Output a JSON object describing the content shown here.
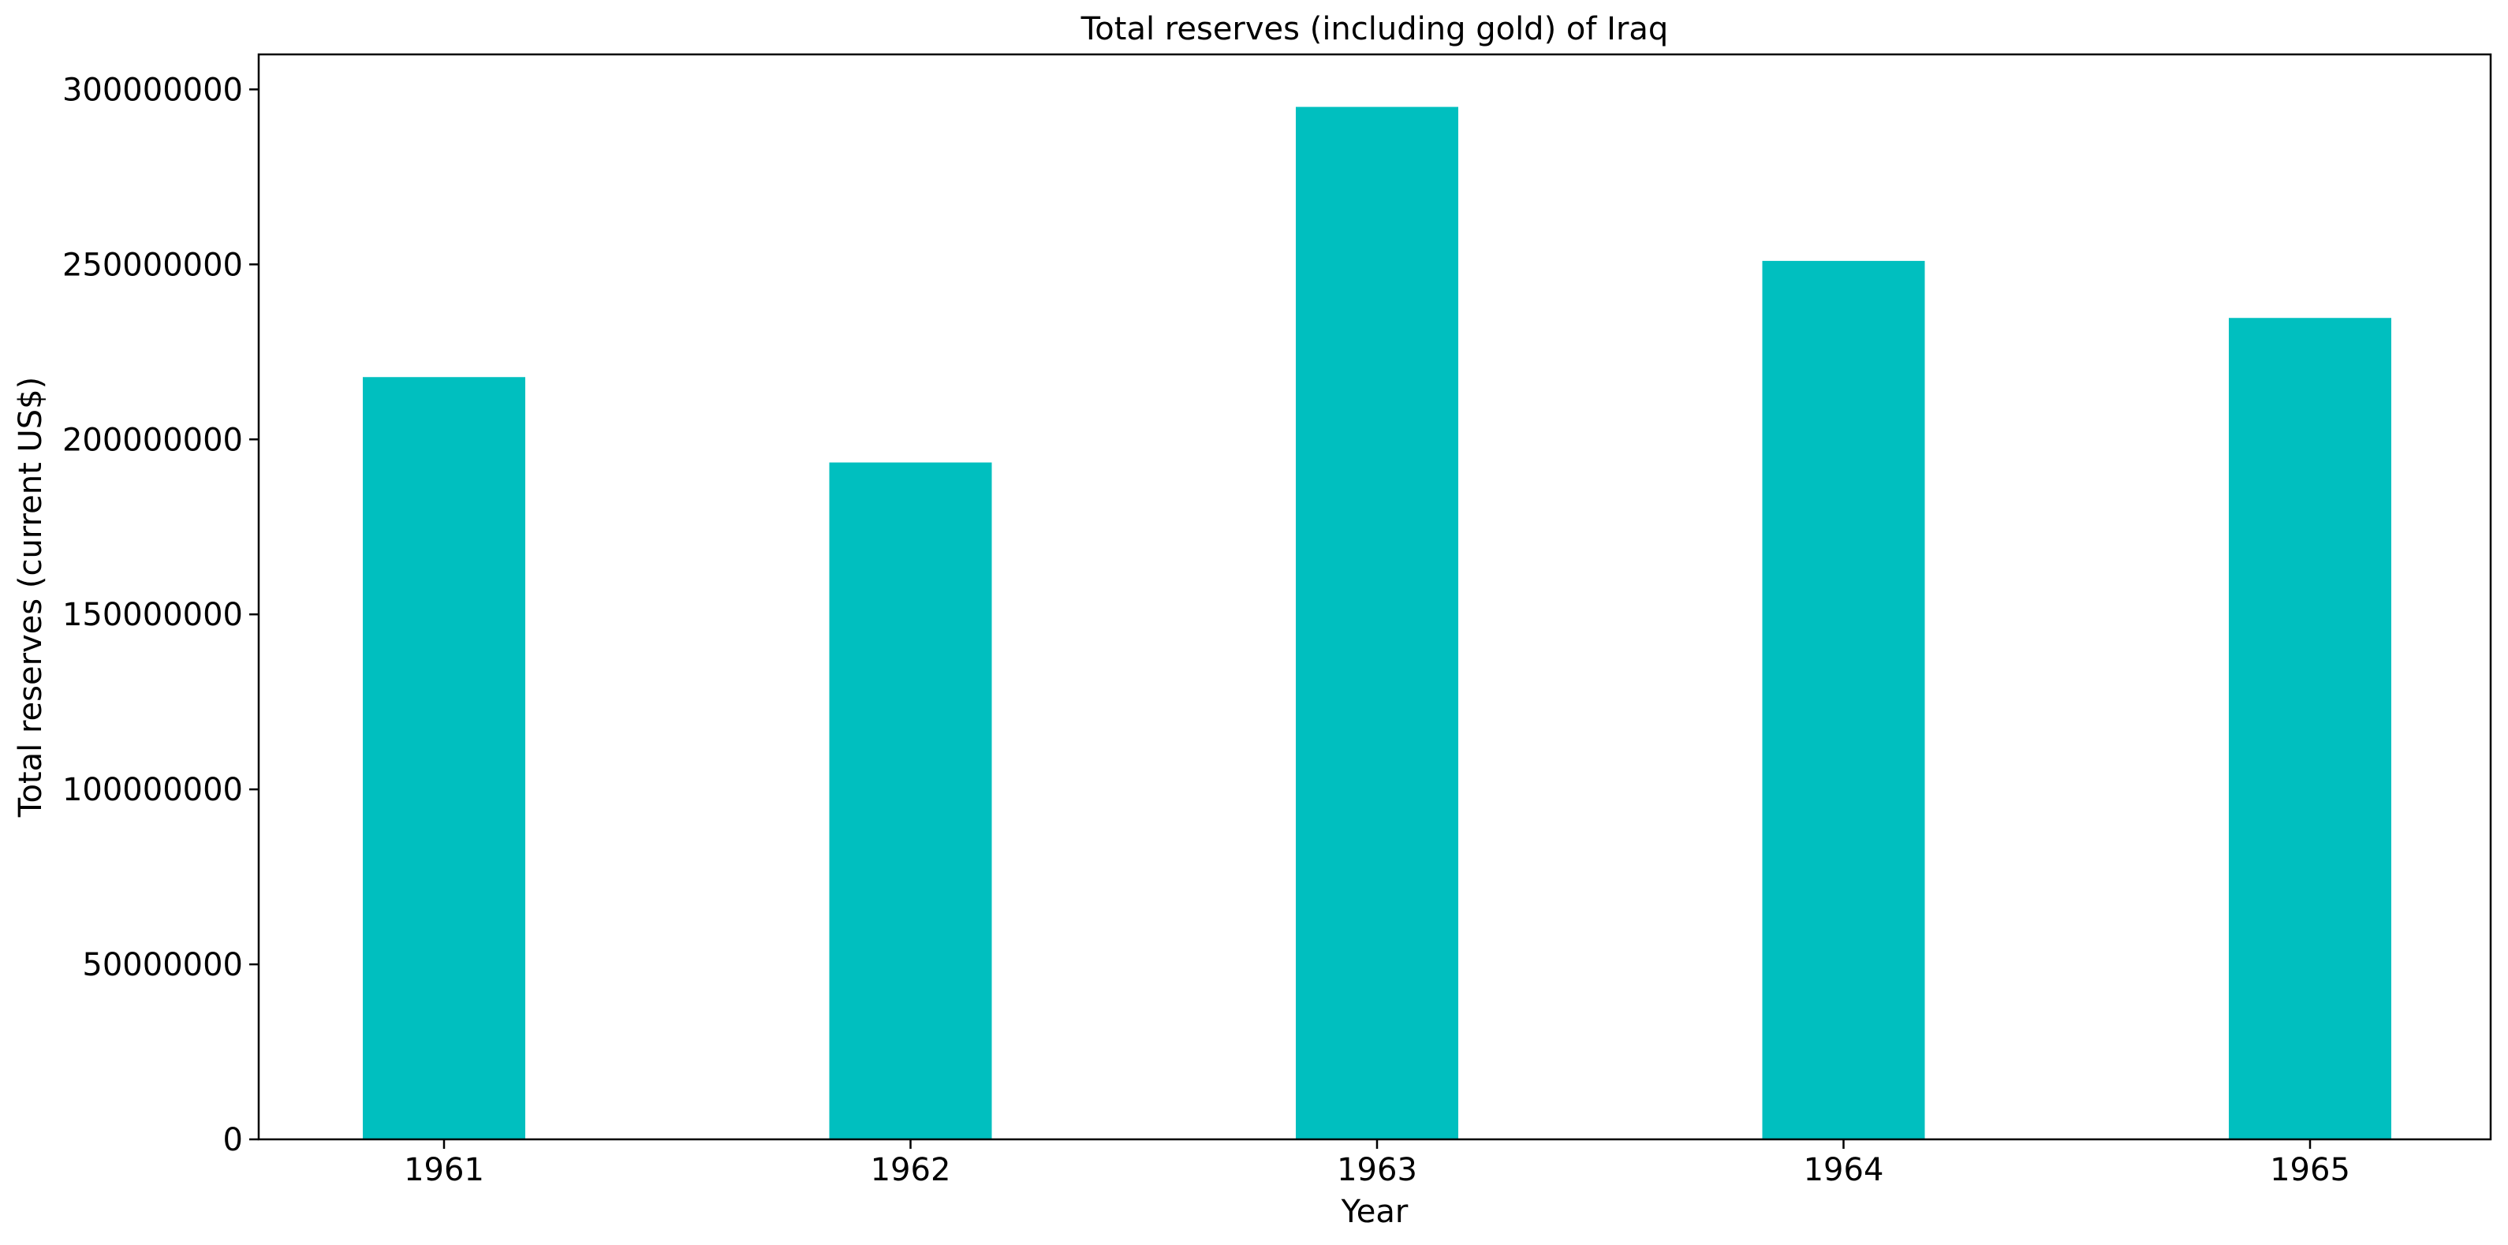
{
  "chart_data": {
    "type": "bar",
    "title": "Total reserves (including gold) of Iraq",
    "xlabel": "Year",
    "ylabel": "Total reserves (current US$)",
    "categories": [
      "1961",
      "1962",
      "1963",
      "1964",
      "1965"
    ],
    "values": [
      217800000,
      193400000,
      295000000,
      251000000,
      234700000
    ],
    "ylim": [
      0,
      310000000
    ],
    "yticks": [
      0,
      50000000,
      100000000,
      150000000,
      200000000,
      250000000,
      300000000
    ],
    "ytick_labels": [
      "0",
      "50000000",
      "100000000",
      "150000000",
      "200000000",
      "250000000",
      "300000000"
    ],
    "bar_color": "#00bfbf",
    "grid": false,
    "legend": "none"
  }
}
